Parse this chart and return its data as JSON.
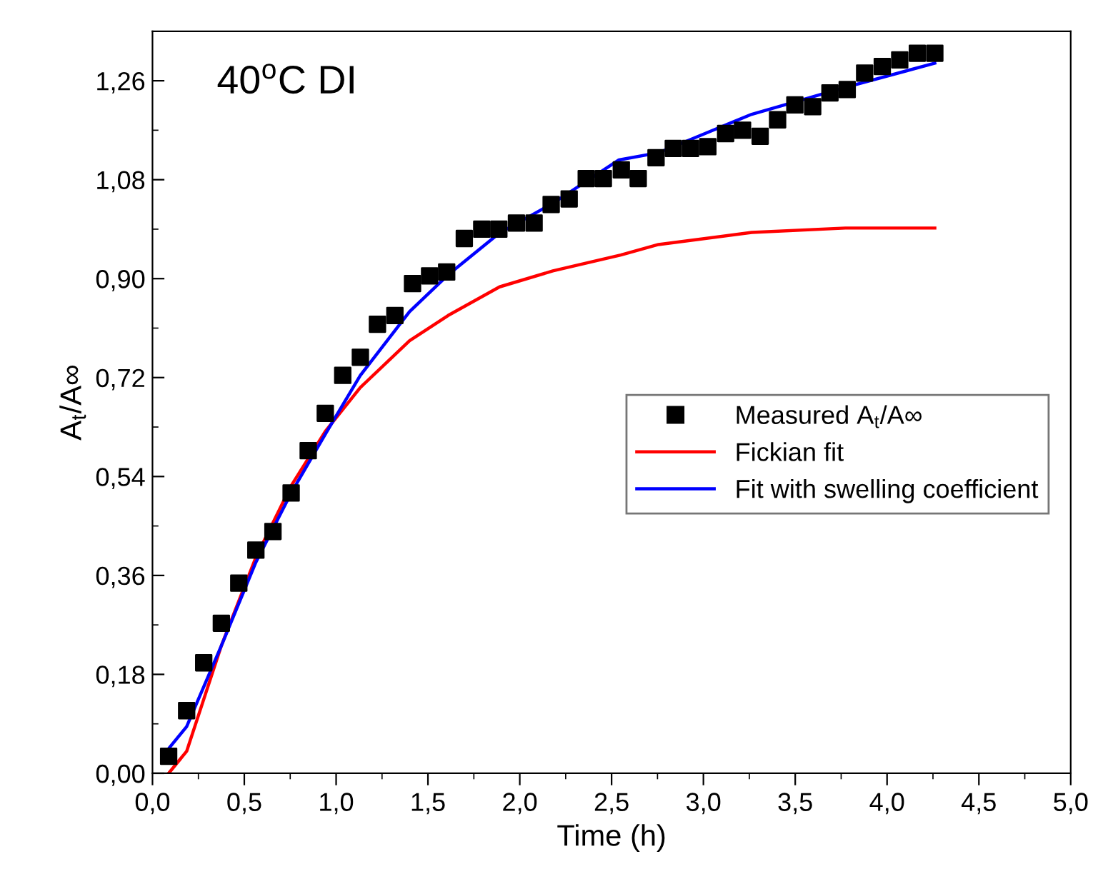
{
  "chart_data": {
    "type": "scatter",
    "xlabel": "Time (h)",
    "ylabel": "A$_{t}$/A∞",
    "annotations": [
      "40$^{o}$C DI"
    ],
    "xlim": [
      0,
      5
    ],
    "ylim": [
      0,
      1.35
    ],
    "xticks": [
      {
        "value": 0,
        "label": "0,0"
      },
      {
        "value": 0.5,
        "label": "0,5"
      },
      {
        "value": 1,
        "label": "1,0"
      },
      {
        "value": 1.5,
        "label": "1,5"
      },
      {
        "value": 2,
        "label": "2,0"
      },
      {
        "value": 2.5,
        "label": "2,5"
      },
      {
        "value": 3,
        "label": "3,0"
      },
      {
        "value": 3.5,
        "label": "3,5"
      },
      {
        "value": 4,
        "label": "4,0"
      },
      {
        "value": 4.5,
        "label": "4,5"
      },
      {
        "value": 5,
        "label": "5,0"
      }
    ],
    "yticks": [
      {
        "value": 0,
        "label": "0,00"
      },
      {
        "value": 0.18,
        "label": "0,18"
      },
      {
        "value": 0.36,
        "label": "0,36"
      },
      {
        "value": 0.54,
        "label": "0,54"
      },
      {
        "value": 0.72,
        "label": "0,72"
      },
      {
        "value": 0.9,
        "label": "0,90"
      },
      {
        "value": 1.08,
        "label": "1,08"
      },
      {
        "value": 1.26,
        "label": "1,26"
      }
    ],
    "legend": "right",
    "grid": false,
    "series": [
      {
        "name": "Measured A$_{t}$/A∞",
        "marker": "square",
        "color": "#000000",
        "x": [
          0.088,
          0.186,
          0.279,
          0.375,
          0.47,
          0.563,
          0.656,
          0.755,
          0.848,
          0.941,
          1.036,
          1.132,
          1.225,
          1.32,
          1.416,
          1.509,
          1.602,
          1.698,
          1.793,
          1.886,
          1.982,
          2.078,
          2.171,
          2.269,
          2.362,
          2.455,
          2.553,
          2.645,
          2.742,
          2.836,
          2.93,
          3.024,
          3.121,
          3.213,
          3.309,
          3.404,
          3.498,
          3.595,
          3.689,
          3.783,
          3.878,
          3.974,
          4.069,
          4.165,
          4.26
        ],
        "values": [
          0.031,
          0.114,
          0.201,
          0.273,
          0.346,
          0.406,
          0.44,
          0.51,
          0.587,
          0.655,
          0.724,
          0.757,
          0.817,
          0.833,
          0.891,
          0.905,
          0.912,
          0.973,
          0.99,
          0.99,
          1.001,
          1.001,
          1.035,
          1.045,
          1.082,
          1.082,
          1.098,
          1.082,
          1.12,
          1.137,
          1.137,
          1.14,
          1.164,
          1.17,
          1.159,
          1.189,
          1.216,
          1.213,
          1.238,
          1.244,
          1.274,
          1.286,
          1.298,
          1.31,
          1.31
        ]
      },
      {
        "name": "Fickian fit",
        "type": "line",
        "marker": "none",
        "line_style": "solid",
        "color": "#ff0000",
        "x": [
          0.088,
          0.186,
          0.375,
          0.563,
          0.755,
          0.941,
          1.132,
          1.4,
          1.61,
          1.89,
          2.18,
          2.55,
          2.755,
          3.263,
          3.773,
          4.26
        ],
        "values": [
          0.0,
          0.04,
          0.232,
          0.393,
          0.523,
          0.622,
          0.702,
          0.787,
          0.833,
          0.885,
          0.914,
          0.943,
          0.962,
          0.984,
          0.992,
          0.992
        ]
      },
      {
        "name": "Fit with swelling coefficient",
        "type": "line",
        "marker": "none",
        "line_style": "solid",
        "color": "#0000ff",
        "x": [
          0.088,
          0.186,
          0.375,
          0.563,
          0.755,
          0.941,
          1.132,
          1.4,
          1.61,
          1.89,
          2.18,
          2.54,
          2.755,
          3.263,
          3.773,
          4.26
        ],
        "values": [
          0.045,
          0.085,
          0.232,
          0.384,
          0.51,
          0.617,
          0.724,
          0.84,
          0.907,
          0.983,
          1.037,
          1.116,
          1.129,
          1.199,
          1.248,
          1.292
        ]
      }
    ]
  }
}
